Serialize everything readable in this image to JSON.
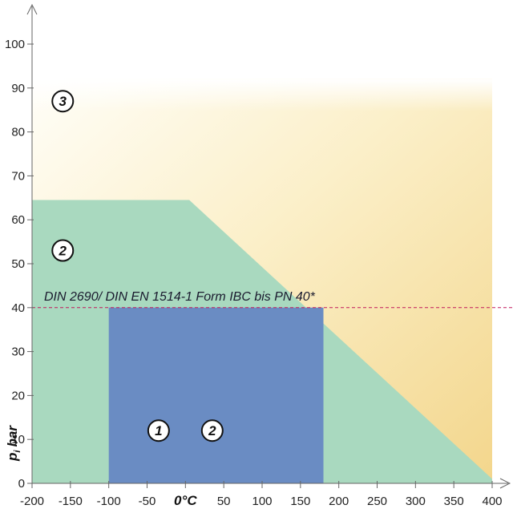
{
  "chart_data": {
    "type": "area",
    "xlabel": "°C",
    "xlabel_prefix": "0",
    "ylabel": "p",
    "ylabel_sub": "i",
    "ylabel_unit": "bar",
    "xlim": [
      -200,
      400
    ],
    "ylim": [
      0,
      100
    ],
    "x_ticks": [
      -200,
      -150,
      -100,
      -50,
      0,
      50,
      100,
      150,
      200,
      250,
      300,
      350,
      400
    ],
    "x_tick_labels": [
      "-200",
      "-150",
      "-100",
      "-50",
      "",
      "50",
      "100",
      "150",
      "200",
      "250",
      "300",
      "350",
      "400"
    ],
    "y_ticks": [
      0,
      10,
      20,
      30,
      40,
      50,
      60,
      70,
      80,
      90,
      100
    ],
    "y_tick_labels": [
      "0",
      "10",
      "20",
      "30",
      "40",
      "50",
      "60",
      "70",
      "80",
      "90",
      "100"
    ],
    "grid": false,
    "regions": [
      {
        "name": "3",
        "color": "#f6e3a6",
        "polygon": [
          [
            -200,
            0
          ],
          [
            400,
            0
          ],
          [
            400,
            92
          ],
          [
            -200,
            92
          ]
        ],
        "label_at": [
          -160,
          87
        ],
        "gradient": true
      },
      {
        "name": "2",
        "color": "#a9d9bf",
        "polygon": [
          [
            -200,
            0
          ],
          [
            400,
            0
          ],
          [
            400,
            1
          ],
          [
            5,
            64.5
          ],
          [
            -200,
            64.5
          ]
        ],
        "label_at": [
          -160,
          53
        ],
        "label2_at": [
          35,
          12
        ]
      },
      {
        "name": "1",
        "color": "#6a8cc3",
        "polygon": [
          [
            -100,
            0
          ],
          [
            180,
            0
          ],
          [
            180,
            36
          ],
          [
            180,
            40
          ],
          [
            -100,
            40
          ]
        ],
        "label_at": [
          -35,
          12
        ]
      }
    ],
    "reference_line": {
      "y": 40,
      "label": "DIN 2690/ DIN EN 1514-1 Form IBC bis PN 40*",
      "color": "#c2185b",
      "style": "dashed"
    },
    "colors": {
      "zone1": "#6a8cc3",
      "zone2": "#a9d9bf",
      "zone3_top": "#fffdf4",
      "zone3_bottom": "#f5dc98",
      "axis": "#666666",
      "refline": "#c2185b"
    }
  }
}
